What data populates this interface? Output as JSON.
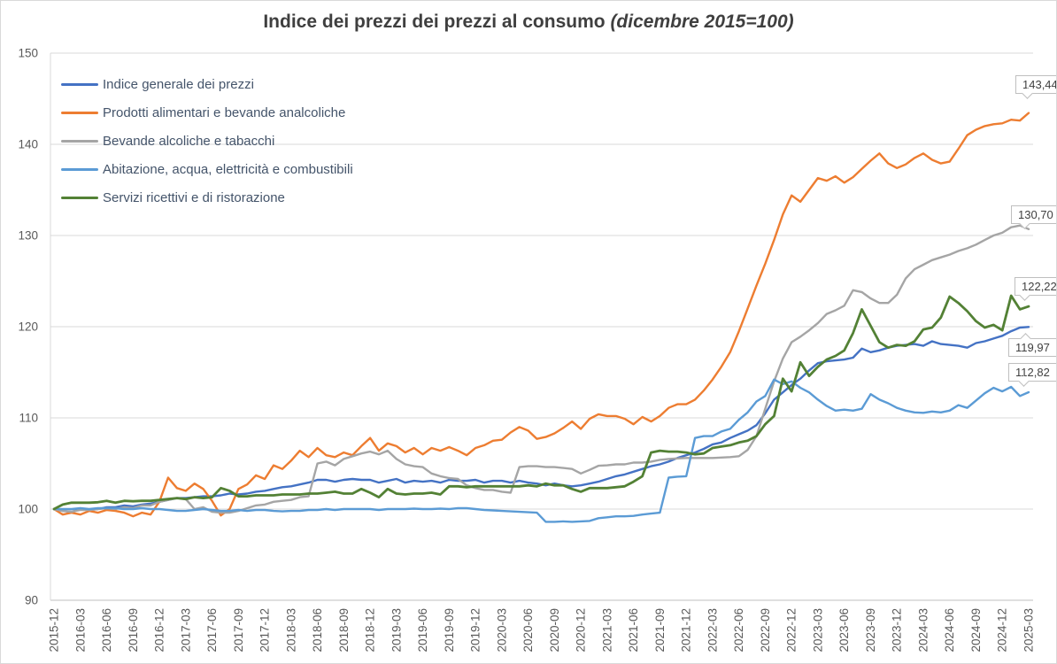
{
  "title": {
    "main": "Indice dei prezzi dei prezzi al consumo ",
    "paren": "(dicembre 2015=100)"
  },
  "chart_data": {
    "type": "line",
    "x_unit": "month",
    "x_start": "2015-12",
    "x_end": "2025-03",
    "ylim": [
      90,
      150
    ],
    "y_ticks": [
      90,
      100,
      110,
      120,
      130,
      140,
      150
    ],
    "grid": "horizontal",
    "legend_position": "top-left-inside",
    "x_tick_labels": [
      "2015-12",
      "2016-03",
      "2016-06",
      "2016-09",
      "2016-12",
      "2017-03",
      "2017-06",
      "2017-09",
      "2017-12",
      "2018-03",
      "2018-06",
      "2018-09",
      "2018-12",
      "2019-03",
      "2019-06",
      "2019-09",
      "2019-12",
      "2020-03",
      "2020-06",
      "2020-09",
      "2020-12",
      "2021-03",
      "2021-06",
      "2021-09",
      "2021-12",
      "2022-03",
      "2022-06",
      "2022-09",
      "2022-12",
      "2023-03",
      "2023-06",
      "2023-09",
      "2023-12",
      "2024-03",
      "2024-06",
      "2024-09",
      "2024-12",
      "2025-03"
    ],
    "series": [
      {
        "name": "Indice generale dei prezzi",
        "color": "#4472C4",
        "end_label": "119,97",
        "values": [
          100.0,
          99.8,
          99.7,
          100.0,
          99.9,
          100.0,
          100.2,
          100.2,
          100.4,
          100.3,
          100.5,
          100.6,
          100.8,
          101.0,
          101.2,
          101.2,
          101.3,
          101.4,
          101.4,
          101.5,
          101.7,
          101.6,
          101.7,
          101.9,
          102.0,
          102.2,
          102.4,
          102.5,
          102.7,
          102.9,
          103.2,
          103.2,
          103.0,
          103.2,
          103.3,
          103.2,
          103.2,
          102.9,
          103.1,
          103.3,
          102.9,
          103.1,
          103.0,
          103.1,
          102.9,
          103.2,
          103.1,
          103.1,
          103.2,
          102.9,
          103.1,
          103.1,
          102.9,
          103.1,
          102.9,
          102.8,
          102.6,
          102.8,
          102.6,
          102.5,
          102.6,
          102.8,
          103.0,
          103.3,
          103.6,
          103.8,
          104.1,
          104.4,
          104.7,
          104.9,
          105.2,
          105.6,
          105.9,
          106.2,
          106.6,
          107.1,
          107.3,
          107.8,
          108.2,
          108.6,
          109.2,
          110.5,
          112.0,
          112.8,
          113.6,
          114.3,
          115.2,
          116.0,
          116.2,
          116.3,
          116.4,
          116.6,
          117.6,
          117.2,
          117.4,
          117.7,
          117.9,
          118.0,
          118.1,
          117.9,
          118.4,
          118.1,
          118.0,
          117.9,
          117.7,
          118.2,
          118.4,
          118.7,
          119.0,
          119.5,
          119.9,
          119.97
        ]
      },
      {
        "name": "Prodotti alimentari e bevande analcoliche",
        "color": "#ED7D31",
        "end_label": "143,44",
        "values": [
          100.0,
          99.4,
          99.6,
          99.4,
          99.8,
          99.6,
          99.9,
          99.8,
          99.6,
          99.2,
          99.6,
          99.4,
          100.8,
          103.45,
          102.3,
          102.0,
          102.8,
          102.2,
          100.9,
          99.3,
          100.0,
          102.2,
          102.7,
          103.7,
          103.3,
          104.8,
          104.4,
          105.3,
          106.4,
          105.7,
          106.7,
          105.9,
          105.7,
          106.2,
          105.9,
          106.9,
          107.8,
          106.4,
          107.2,
          106.9,
          106.2,
          106.7,
          106.0,
          106.7,
          106.4,
          106.8,
          106.4,
          105.9,
          106.7,
          107.0,
          107.5,
          107.6,
          108.4,
          109.0,
          108.6,
          107.7,
          107.9,
          108.3,
          108.9,
          109.6,
          108.8,
          109.9,
          110.4,
          110.2,
          110.2,
          109.9,
          109.3,
          110.1,
          109.6,
          110.2,
          111.1,
          111.5,
          111.5,
          112.0,
          113.0,
          114.2,
          115.6,
          117.2,
          119.5,
          122.0,
          124.5,
          126.9,
          129.5,
          132.3,
          134.4,
          133.7,
          135.0,
          136.3,
          136.0,
          136.5,
          135.8,
          136.4,
          137.3,
          138.2,
          139.0,
          137.9,
          137.4,
          137.8,
          138.5,
          139.0,
          138.3,
          137.9,
          138.1,
          139.5,
          141.0,
          141.6,
          142.0,
          142.2,
          142.3,
          142.7,
          142.6,
          143.44
        ]
      },
      {
        "name": "Bevande alcoliche e tabacchi",
        "color": "#A5A5A5",
        "end_label": "130,70",
        "values": [
          100.0,
          99.8,
          99.7,
          99.9,
          99.9,
          100.0,
          100.1,
          100.0,
          100.2,
          100.1,
          100.4,
          100.4,
          100.8,
          101.0,
          101.2,
          101.1,
          100.0,
          100.2,
          99.7,
          99.6,
          99.6,
          99.8,
          100.1,
          100.4,
          100.5,
          100.8,
          100.9,
          101.0,
          101.3,
          101.4,
          105.0,
          105.2,
          104.8,
          105.5,
          105.8,
          106.1,
          106.3,
          106.0,
          106.4,
          105.5,
          104.9,
          104.7,
          104.6,
          103.9,
          103.6,
          103.4,
          103.3,
          102.6,
          102.3,
          102.1,
          102.1,
          101.9,
          101.8,
          104.6,
          104.7,
          104.7,
          104.6,
          104.6,
          104.5,
          104.4,
          103.9,
          104.3,
          104.75,
          104.8,
          104.9,
          104.9,
          105.1,
          105.1,
          105.2,
          105.4,
          105.5,
          105.55,
          105.6,
          105.6,
          105.6,
          105.6,
          105.65,
          105.7,
          105.8,
          106.5,
          108.0,
          111.0,
          114.0,
          116.5,
          118.3,
          118.9,
          119.6,
          120.4,
          121.4,
          121.8,
          122.3,
          124.0,
          123.8,
          123.1,
          122.6,
          122.6,
          123.5,
          125.3,
          126.3,
          126.8,
          127.3,
          127.6,
          127.9,
          128.3,
          128.6,
          129.0,
          129.5,
          130.0,
          130.3,
          130.9,
          131.1,
          130.7
        ]
      },
      {
        "name": "Abitazione, acqua, elettricità e combustibili",
        "color": "#5B9BD5",
        "end_label": "112,82",
        "values": [
          100.0,
          100.0,
          100.0,
          100.1,
          100.0,
          100.1,
          100.1,
          100.1,
          100.0,
          100.0,
          100.1,
          100.0,
          100.0,
          99.9,
          99.8,
          99.8,
          99.9,
          100.0,
          99.9,
          99.8,
          99.8,
          99.9,
          99.8,
          99.9,
          99.9,
          99.8,
          99.75,
          99.8,
          99.8,
          99.9,
          99.9,
          100.0,
          99.9,
          100.0,
          100.0,
          100.0,
          100.0,
          99.9,
          100.0,
          100.0,
          100.0,
          100.05,
          100.0,
          100.0,
          100.05,
          100.0,
          100.1,
          100.1,
          100.0,
          99.9,
          99.85,
          99.8,
          99.75,
          99.7,
          99.65,
          99.6,
          98.6,
          98.6,
          98.65,
          98.6,
          98.65,
          98.7,
          99.0,
          99.1,
          99.2,
          99.2,
          99.25,
          99.4,
          99.5,
          99.6,
          103.45,
          103.55,
          103.6,
          107.8,
          108.0,
          108.0,
          108.5,
          108.8,
          109.8,
          110.6,
          111.8,
          112.4,
          114.2,
          113.7,
          114.0,
          113.3,
          112.8,
          112.0,
          111.3,
          110.8,
          110.9,
          110.8,
          111.0,
          112.6,
          112.0,
          111.6,
          111.1,
          110.8,
          110.6,
          110.55,
          110.7,
          110.6,
          110.8,
          111.4,
          111.1,
          111.9,
          112.7,
          113.3,
          112.9,
          113.4,
          112.4,
          112.82
        ]
      },
      {
        "name": "Servizi ricettivi e di ristorazione",
        "color": "#538135",
        "end_label": "122,22",
        "values": [
          100.0,
          100.5,
          100.7,
          100.7,
          100.7,
          100.75,
          100.9,
          100.7,
          100.9,
          100.85,
          100.9,
          100.9,
          101.0,
          101.1,
          101.2,
          101.1,
          101.3,
          101.2,
          101.3,
          102.3,
          102.0,
          101.4,
          101.4,
          101.5,
          101.5,
          101.5,
          101.6,
          101.6,
          101.6,
          101.7,
          101.7,
          101.8,
          101.9,
          101.7,
          101.7,
          102.2,
          101.8,
          101.3,
          102.2,
          101.7,
          101.6,
          101.7,
          101.7,
          101.8,
          101.6,
          102.5,
          102.5,
          102.4,
          102.5,
          102.5,
          102.5,
          102.5,
          102.5,
          102.5,
          102.6,
          102.5,
          102.8,
          102.6,
          102.6,
          102.2,
          101.9,
          102.3,
          102.3,
          102.3,
          102.4,
          102.5,
          103.0,
          103.6,
          106.2,
          106.4,
          106.3,
          106.3,
          106.2,
          106.0,
          106.1,
          106.7,
          106.85,
          107.0,
          107.3,
          107.5,
          108.0,
          109.3,
          110.2,
          114.3,
          112.9,
          116.1,
          114.6,
          115.6,
          116.4,
          116.8,
          117.4,
          119.3,
          121.9,
          120.1,
          118.3,
          117.7,
          118.0,
          117.9,
          118.4,
          119.7,
          119.9,
          121.0,
          123.3,
          122.6,
          121.7,
          120.6,
          119.9,
          120.2,
          119.6,
          123.4,
          121.9,
          122.22
        ]
      }
    ]
  }
}
